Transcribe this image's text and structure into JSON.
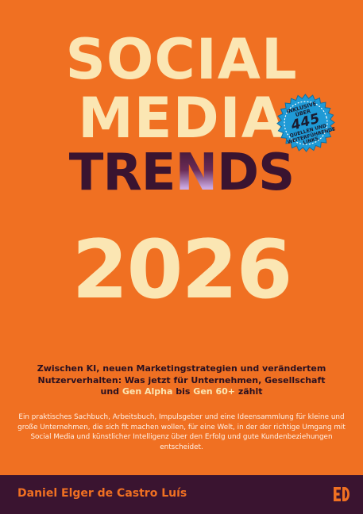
{
  "colors": {
    "background": "#f07022",
    "cream": "#fbe6b3",
    "plum": "#3a1430",
    "badge": "#1f9ad6"
  },
  "title": {
    "line1": "SOCIAL",
    "line2": "MEDIA",
    "line3_main": "TRE",
    "line3_gradient": "N",
    "line3_end": "DS",
    "year": "2026"
  },
  "badge": {
    "line1": "INKLUSIVE ÜBER",
    "number": "445",
    "line3": "QUELLEN UND",
    "line4": "WEITERFÜHRENDE",
    "line5": "LINKS"
  },
  "subtitle": {
    "part1": "Zwischen KI, neuen Marketingstrategien und verändertem Nutzerverhalten: Was jetzt für Unternehmen, Gesellschaft und ",
    "hl1": "Gen Alpha",
    "part2": " bis ",
    "hl2": "Gen 60+",
    "part3": " zählt"
  },
  "description": "Ein praktisches Sachbuch, Arbeitsbuch, Impulsgeber und eine Ideensammlung für kleine und große Unternehmen, die sich fit machen wollen, für eine Welt, in der der richtige Umgang mit Social Media und künstlicher Intelligenz über den Erfolg und gute Kundenbeziehungen entscheidet.",
  "author": "Daniel Elger de Castro Luís",
  "publisher_logo_icon": "ed-logo-icon"
}
